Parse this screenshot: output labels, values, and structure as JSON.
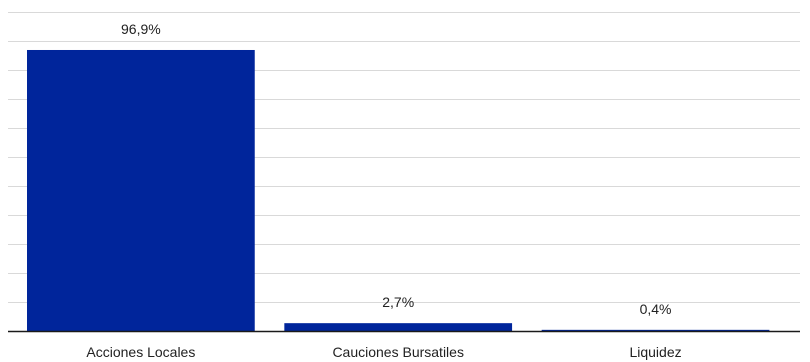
{
  "chart_data": {
    "type": "bar",
    "categories": [
      "Acciones Locales",
      "Cauciones Bursatiles",
      "Liquidez"
    ],
    "values": [
      96.9,
      2.7,
      0.4
    ],
    "value_labels": [
      "96,9%",
      "2,7%",
      "0,4%"
    ],
    "title": "",
    "xlabel": "",
    "ylabel": "",
    "ylim": [
      0,
      110
    ],
    "grid": true,
    "bar_color": "#00259b",
    "legend": "none"
  }
}
